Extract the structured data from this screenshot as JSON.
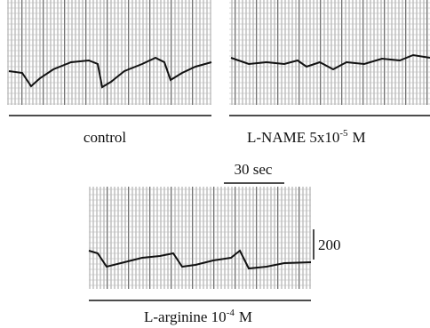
{
  "panels": [
    {
      "label": "control"
    },
    {
      "label": "L-NAME 5x10",
      "exponent": "-5",
      "unit": "M"
    },
    {
      "label": "L-arginine 10",
      "exponent": "-4",
      "unit": "M"
    }
  ],
  "scale_bars": {
    "time": "30 sec",
    "amplitude": "200"
  }
}
